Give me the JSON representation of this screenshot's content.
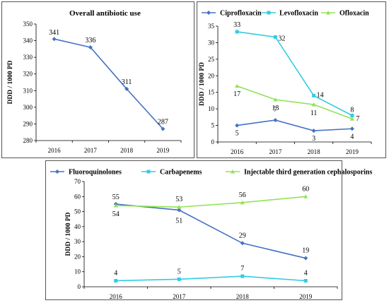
{
  "chart_data": [
    {
      "type": "line",
      "title": "Overall antibiotic use",
      "ylabel": "DDD / 1000 PD",
      "xlabel": "",
      "categories": [
        "2016",
        "2017",
        "2018",
        "2019"
      ],
      "ylim": [
        280,
        350
      ],
      "yticks": [
        280,
        290,
        300,
        310,
        320,
        330,
        340,
        350
      ],
      "grid": false,
      "series": [
        {
          "values": [
            341,
            336,
            311,
            287
          ],
          "labels": [
            "341",
            "336",
            "311",
            "287"
          ],
          "color": "#4472C4",
          "marker": "diamond"
        }
      ]
    },
    {
      "type": "line",
      "title": "",
      "ylabel": "DDD / 1000 PD",
      "xlabel": "",
      "categories": [
        "2016",
        "2017",
        "2018",
        "2019"
      ],
      "ylim": [
        0,
        35
      ],
      "yticks": [
        0,
        5,
        10,
        15,
        20,
        25,
        30,
        35
      ],
      "grid": false,
      "legend": "top",
      "series": [
        {
          "name": "Ciprofloxacin",
          "values": [
            5,
            6.6,
            3.4,
            4
          ],
          "labels": [
            "5",
            "7",
            "3",
            "4"
          ],
          "color": "#4472C4",
          "marker": "diamond"
        },
        {
          "name": "Levofloxacin",
          "values": [
            33.3,
            31.7,
            14,
            8
          ],
          "labels": [
            "33",
            "32",
            "14",
            "8"
          ],
          "color": "#33CCE0",
          "marker": "square"
        },
        {
          "name": "Ofloxacin",
          "values": [
            16.9,
            12.8,
            11.3,
            7
          ],
          "labels": [
            "17",
            "13",
            "11",
            "7"
          ],
          "color": "#92E356",
          "marker": "triangle"
        }
      ]
    },
    {
      "type": "line",
      "title": "",
      "ylabel": "DDD / 1000 PD",
      "xlabel": "",
      "categories": [
        "2016",
        "2017",
        "2018",
        "2019"
      ],
      "ylim": [
        0,
        70
      ],
      "yticks": [
        0,
        10,
        20,
        30,
        40,
        50,
        60,
        70
      ],
      "grid": false,
      "legend": "top",
      "series": [
        {
          "name": "Fluoroquinolones",
          "values": [
            55,
            51,
            29,
            19
          ],
          "labels": [
            "55",
            "51",
            "29",
            "19"
          ],
          "color": "#4472C4",
          "marker": "diamond"
        },
        {
          "name": "Carbapenems",
          "values": [
            4,
            5,
            7,
            4
          ],
          "labels": [
            "4",
            "5",
            "7",
            "4"
          ],
          "color": "#33CCE0",
          "marker": "square"
        },
        {
          "name": "Injectable third generation cephalosporins",
          "values": [
            54,
            53,
            56,
            60
          ],
          "labels": [
            "54",
            "53",
            "56",
            "60"
          ],
          "color": "#92E356",
          "marker": "triangle"
        }
      ]
    }
  ]
}
